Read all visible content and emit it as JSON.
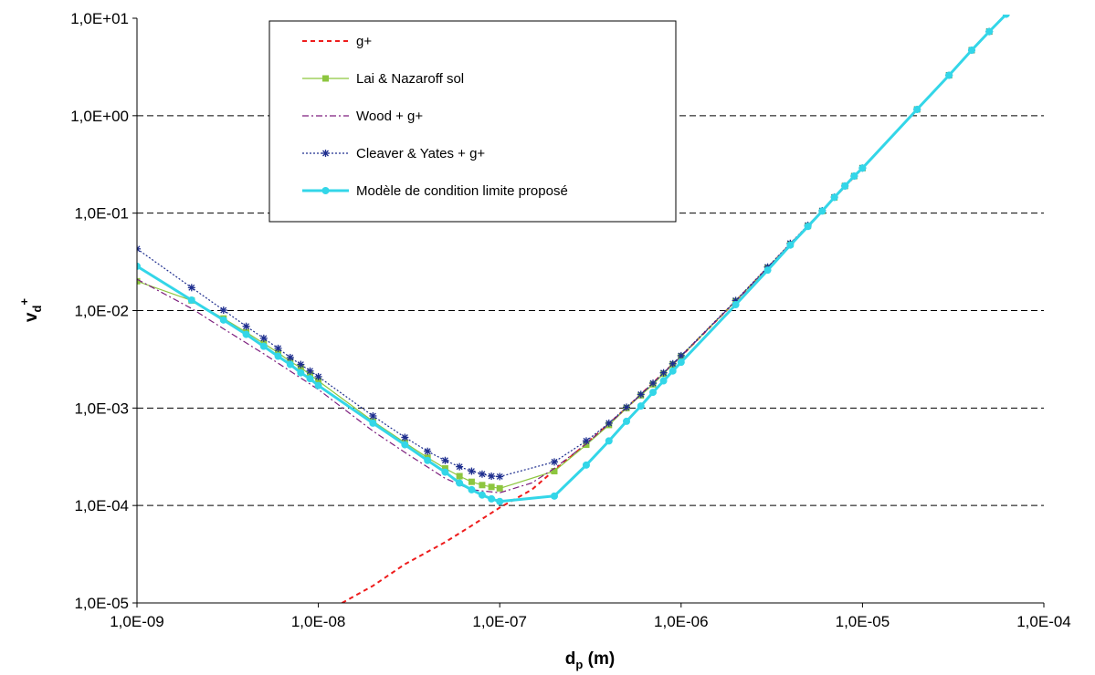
{
  "chart_data": {
    "type": "line",
    "x_scale": "log",
    "y_scale": "log",
    "xlim": [
      1e-09,
      0.0001
    ],
    "ylim": [
      1e-05,
      10
    ],
    "x_ticks": [
      "1,0E-09",
      "1,0E-08",
      "1,0E-07",
      "1,0E-06",
      "1,0E-05",
      "1,0E-04"
    ],
    "y_ticks": [
      "1,0E-05",
      "1,0E-04",
      "1,0E-03",
      "1,0E-02",
      "1,0E-01",
      "1,0E+00",
      "1,0E+01"
    ],
    "xlabel": "d",
    "xlabel_sub": "p",
    "xlabel_unit": " (m)",
    "ylabel": "v",
    "ylabel_sub": "d",
    "ylabel_sup": "+",
    "grid": "horizontal dashed",
    "legend_position": "top-left",
    "series": [
      {
        "name": "g+",
        "color": "#ee1c1c",
        "style": "dashed",
        "marker": "none",
        "x": [
          1.35e-08,
          2e-08,
          3e-08,
          5e-08,
          7e-08,
          1e-07,
          1.5e-07,
          2e-07,
          3e-07,
          5e-07,
          1e-06,
          2e-06,
          5e-06,
          1e-05,
          2e-05,
          5e-05,
          6.2e-05
        ],
        "y": [
          1e-05,
          1.5e-05,
          2.5e-05,
          4.2e-05,
          6.2e-05,
          9.5e-05,
          0.000145,
          0.00023,
          0.00043,
          0.001,
          0.0034,
          0.0125,
          0.074,
          0.29,
          1.16,
          7.3,
          11
        ]
      },
      {
        "name": "Lai & Nazaroff sol",
        "color": "#8dc63f",
        "style": "solid",
        "marker": "square",
        "x": [
          1e-09,
          2e-09,
          3e-09,
          4e-09,
          5e-09,
          6e-09,
          7e-09,
          8e-09,
          9e-09,
          1e-08,
          2e-08,
          3e-08,
          4e-08,
          5e-08,
          6e-08,
          7e-08,
          8e-08,
          9e-08,
          1e-07,
          2e-07,
          3e-07,
          4e-07,
          5e-07,
          6e-07,
          7e-07,
          8e-07,
          9e-07,
          1e-06,
          2e-06,
          3e-06,
          4e-06,
          5e-06,
          6e-06,
          7e-06,
          8e-06,
          9e-06,
          1e-05,
          2e-05,
          3e-05,
          4e-05,
          5e-05
        ],
        "y": [
          0.02,
          0.0127,
          0.0083,
          0.006,
          0.0046,
          0.0037,
          0.003,
          0.0026,
          0.0022,
          0.0019,
          0.00073,
          0.00044,
          0.00031,
          0.00024,
          0.0002,
          0.000175,
          0.000162,
          0.000155,
          0.00015,
          0.000225,
          0.00042,
          0.00067,
          0.001,
          0.00135,
          0.00175,
          0.00225,
          0.0028,
          0.0034,
          0.0125,
          0.0275,
          0.048,
          0.074,
          0.105,
          0.145,
          0.19,
          0.24,
          0.29,
          1.16,
          2.6,
          4.7,
          7.3
        ]
      },
      {
        "name": "Wood  +  g+",
        "color": "#7d1f7d",
        "style": "dashdot",
        "marker": "none",
        "x": [
          1e-09,
          2e-09,
          3e-09,
          5e-09,
          1e-08,
          2e-08,
          3e-08,
          5e-08,
          7e-08,
          1e-07,
          1.5e-07,
          2e-07,
          3e-07,
          5e-07,
          1e-06,
          2e-06,
          5e-06,
          1e-05,
          2e-05,
          5e-05
        ],
        "y": [
          0.021,
          0.0105,
          0.0065,
          0.0036,
          0.00155,
          0.00058,
          0.00035,
          0.00019,
          0.000145,
          0.000135,
          0.00017,
          0.00024,
          0.00043,
          0.001,
          0.0034,
          0.0125,
          0.074,
          0.29,
          1.16,
          7.3
        ]
      },
      {
        "name": "Cleaver & Yates  +  g+",
        "color": "#1f2f8f",
        "style": "dotted",
        "marker": "asterisk",
        "x": [
          1e-09,
          2e-09,
          3e-09,
          4e-09,
          5e-09,
          6e-09,
          7e-09,
          8e-09,
          9e-09,
          1e-08,
          2e-08,
          3e-08,
          4e-08,
          5e-08,
          6e-08,
          7e-08,
          8e-08,
          9e-08,
          1e-07,
          2e-07,
          3e-07,
          4e-07,
          5e-07,
          6e-07,
          7e-07,
          8e-07,
          9e-07,
          1e-06,
          2e-06,
          3e-06,
          4e-06,
          5e-06,
          6e-06,
          7e-06,
          8e-06,
          9e-06,
          1e-05,
          2e-05,
          3e-05,
          4e-05,
          5e-05
        ],
        "y": [
          0.043,
          0.0172,
          0.0101,
          0.0069,
          0.0052,
          0.0041,
          0.0033,
          0.0028,
          0.0024,
          0.0021,
          0.00083,
          0.0005,
          0.00036,
          0.00029,
          0.00025,
          0.000225,
          0.00021,
          0.0002,
          0.000198,
          0.00028,
          0.00046,
          0.0007,
          0.00102,
          0.00138,
          0.0018,
          0.0023,
          0.00285,
          0.00345,
          0.0127,
          0.028,
          0.049,
          0.075,
          0.106,
          0.146,
          0.19,
          0.24,
          0.29,
          1.16,
          2.6,
          4.7,
          7.3
        ]
      },
      {
        "name": "Modèle de condition limite proposé",
        "color": "#33d6e8",
        "style": "solid-thick",
        "marker": "circle",
        "x": [
          1e-09,
          2e-09,
          3e-09,
          4e-09,
          5e-09,
          6e-09,
          7e-09,
          8e-09,
          9e-09,
          1e-08,
          2e-08,
          3e-08,
          4e-08,
          5e-08,
          6e-08,
          7e-08,
          8e-08,
          9e-08,
          1e-07,
          2e-07,
          3e-07,
          4e-07,
          5e-07,
          6e-07,
          7e-07,
          8e-07,
          9e-07,
          1e-06,
          2e-06,
          3e-06,
          4e-06,
          5e-06,
          6e-06,
          7e-06,
          8e-06,
          9e-06,
          1e-05,
          2e-05,
          3e-05,
          4e-05,
          5e-05,
          6.2e-05
        ],
        "y": [
          0.0285,
          0.0128,
          0.008,
          0.0057,
          0.0043,
          0.0034,
          0.0028,
          0.0023,
          0.002,
          0.0017,
          0.0007,
          0.00042,
          0.00029,
          0.00022,
          0.00017,
          0.000145,
          0.000128,
          0.000117,
          0.00011,
          0.000125,
          0.00026,
          0.00046,
          0.00073,
          0.00105,
          0.00145,
          0.0019,
          0.0024,
          0.00295,
          0.0115,
          0.026,
          0.047,
          0.073,
          0.105,
          0.145,
          0.19,
          0.24,
          0.29,
          1.16,
          2.6,
          4.7,
          7.3,
          11
        ]
      }
    ]
  }
}
